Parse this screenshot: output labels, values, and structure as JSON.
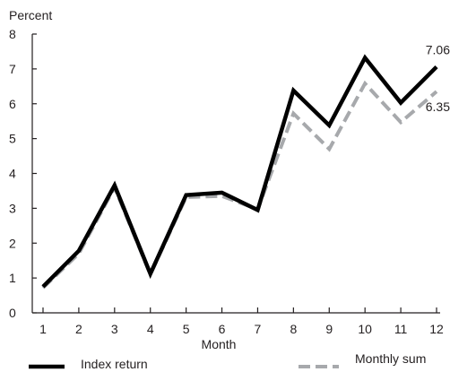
{
  "chart_data": {
    "type": "line",
    "title": "",
    "ylabel": "Percent",
    "xlabel": "Month",
    "x": [
      1,
      2,
      3,
      4,
      5,
      6,
      7,
      8,
      9,
      10,
      11,
      12
    ],
    "ylim": [
      0,
      8
    ],
    "yticks": [
      0,
      1,
      2,
      3,
      4,
      5,
      6,
      7,
      8
    ],
    "grid": false,
    "legend": "bottom",
    "series": [
      {
        "name": "Index return",
        "values": [
          0.75,
          1.78,
          3.66,
          1.12,
          3.38,
          3.45,
          2.95,
          6.38,
          5.38,
          7.32,
          6.03,
          7.06
        ],
        "color": "#000000",
        "style": "solid",
        "end_label": "7.06"
      },
      {
        "name": "Monthly sum",
        "values": [
          0.72,
          1.7,
          3.6,
          1.1,
          3.32,
          3.35,
          2.97,
          5.72,
          4.7,
          6.58,
          5.47,
          6.35
        ],
        "color": "#a7a9ac",
        "style": "dashed",
        "end_label": "6.35"
      }
    ]
  }
}
